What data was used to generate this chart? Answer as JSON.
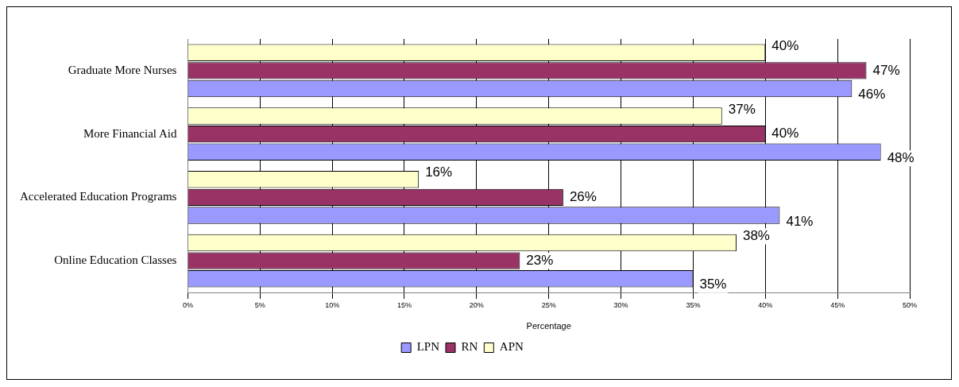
{
  "chart_data": {
    "type": "bar",
    "orientation": "horizontal",
    "xlabel": "Percentage",
    "categories": [
      "Graduate More Nurses",
      "More Financial Aid",
      "Accelerated Education Programs",
      "Online Education Classes"
    ],
    "series": [
      {
        "name": "LPN",
        "color": "#9999ff",
        "values": [
          46,
          48,
          41,
          35
        ],
        "value_labels": [
          "46%",
          "48%",
          "41%",
          "35%"
        ]
      },
      {
        "name": "RN",
        "color": "#993366",
        "values": [
          47,
          40,
          26,
          23
        ],
        "value_labels": [
          "47%",
          "40%",
          "26%",
          "23%"
        ]
      },
      {
        "name": "APN",
        "color": "#ffffcc",
        "values": [
          40,
          37,
          16,
          38
        ],
        "value_labels": [
          "40%",
          "37%",
          "16%",
          "38%"
        ]
      }
    ],
    "xlim": [
      0,
      50
    ],
    "xticks": [
      {
        "value": 0,
        "label": "0%"
      },
      {
        "value": 5,
        "label": "5%"
      },
      {
        "value": 10,
        "label": "10%"
      },
      {
        "value": 15,
        "label": "15%"
      },
      {
        "value": 20,
        "label": "20%"
      },
      {
        "value": 25,
        "label": "25%"
      },
      {
        "value": 30,
        "label": "30%"
      },
      {
        "value": 35,
        "label": "35%"
      },
      {
        "value": 40,
        "label": "40%"
      },
      {
        "value": 45,
        "label": "45%"
      },
      {
        "value": 50,
        "label": "50%"
      }
    ],
    "grid": "x",
    "legend": "bottom"
  }
}
